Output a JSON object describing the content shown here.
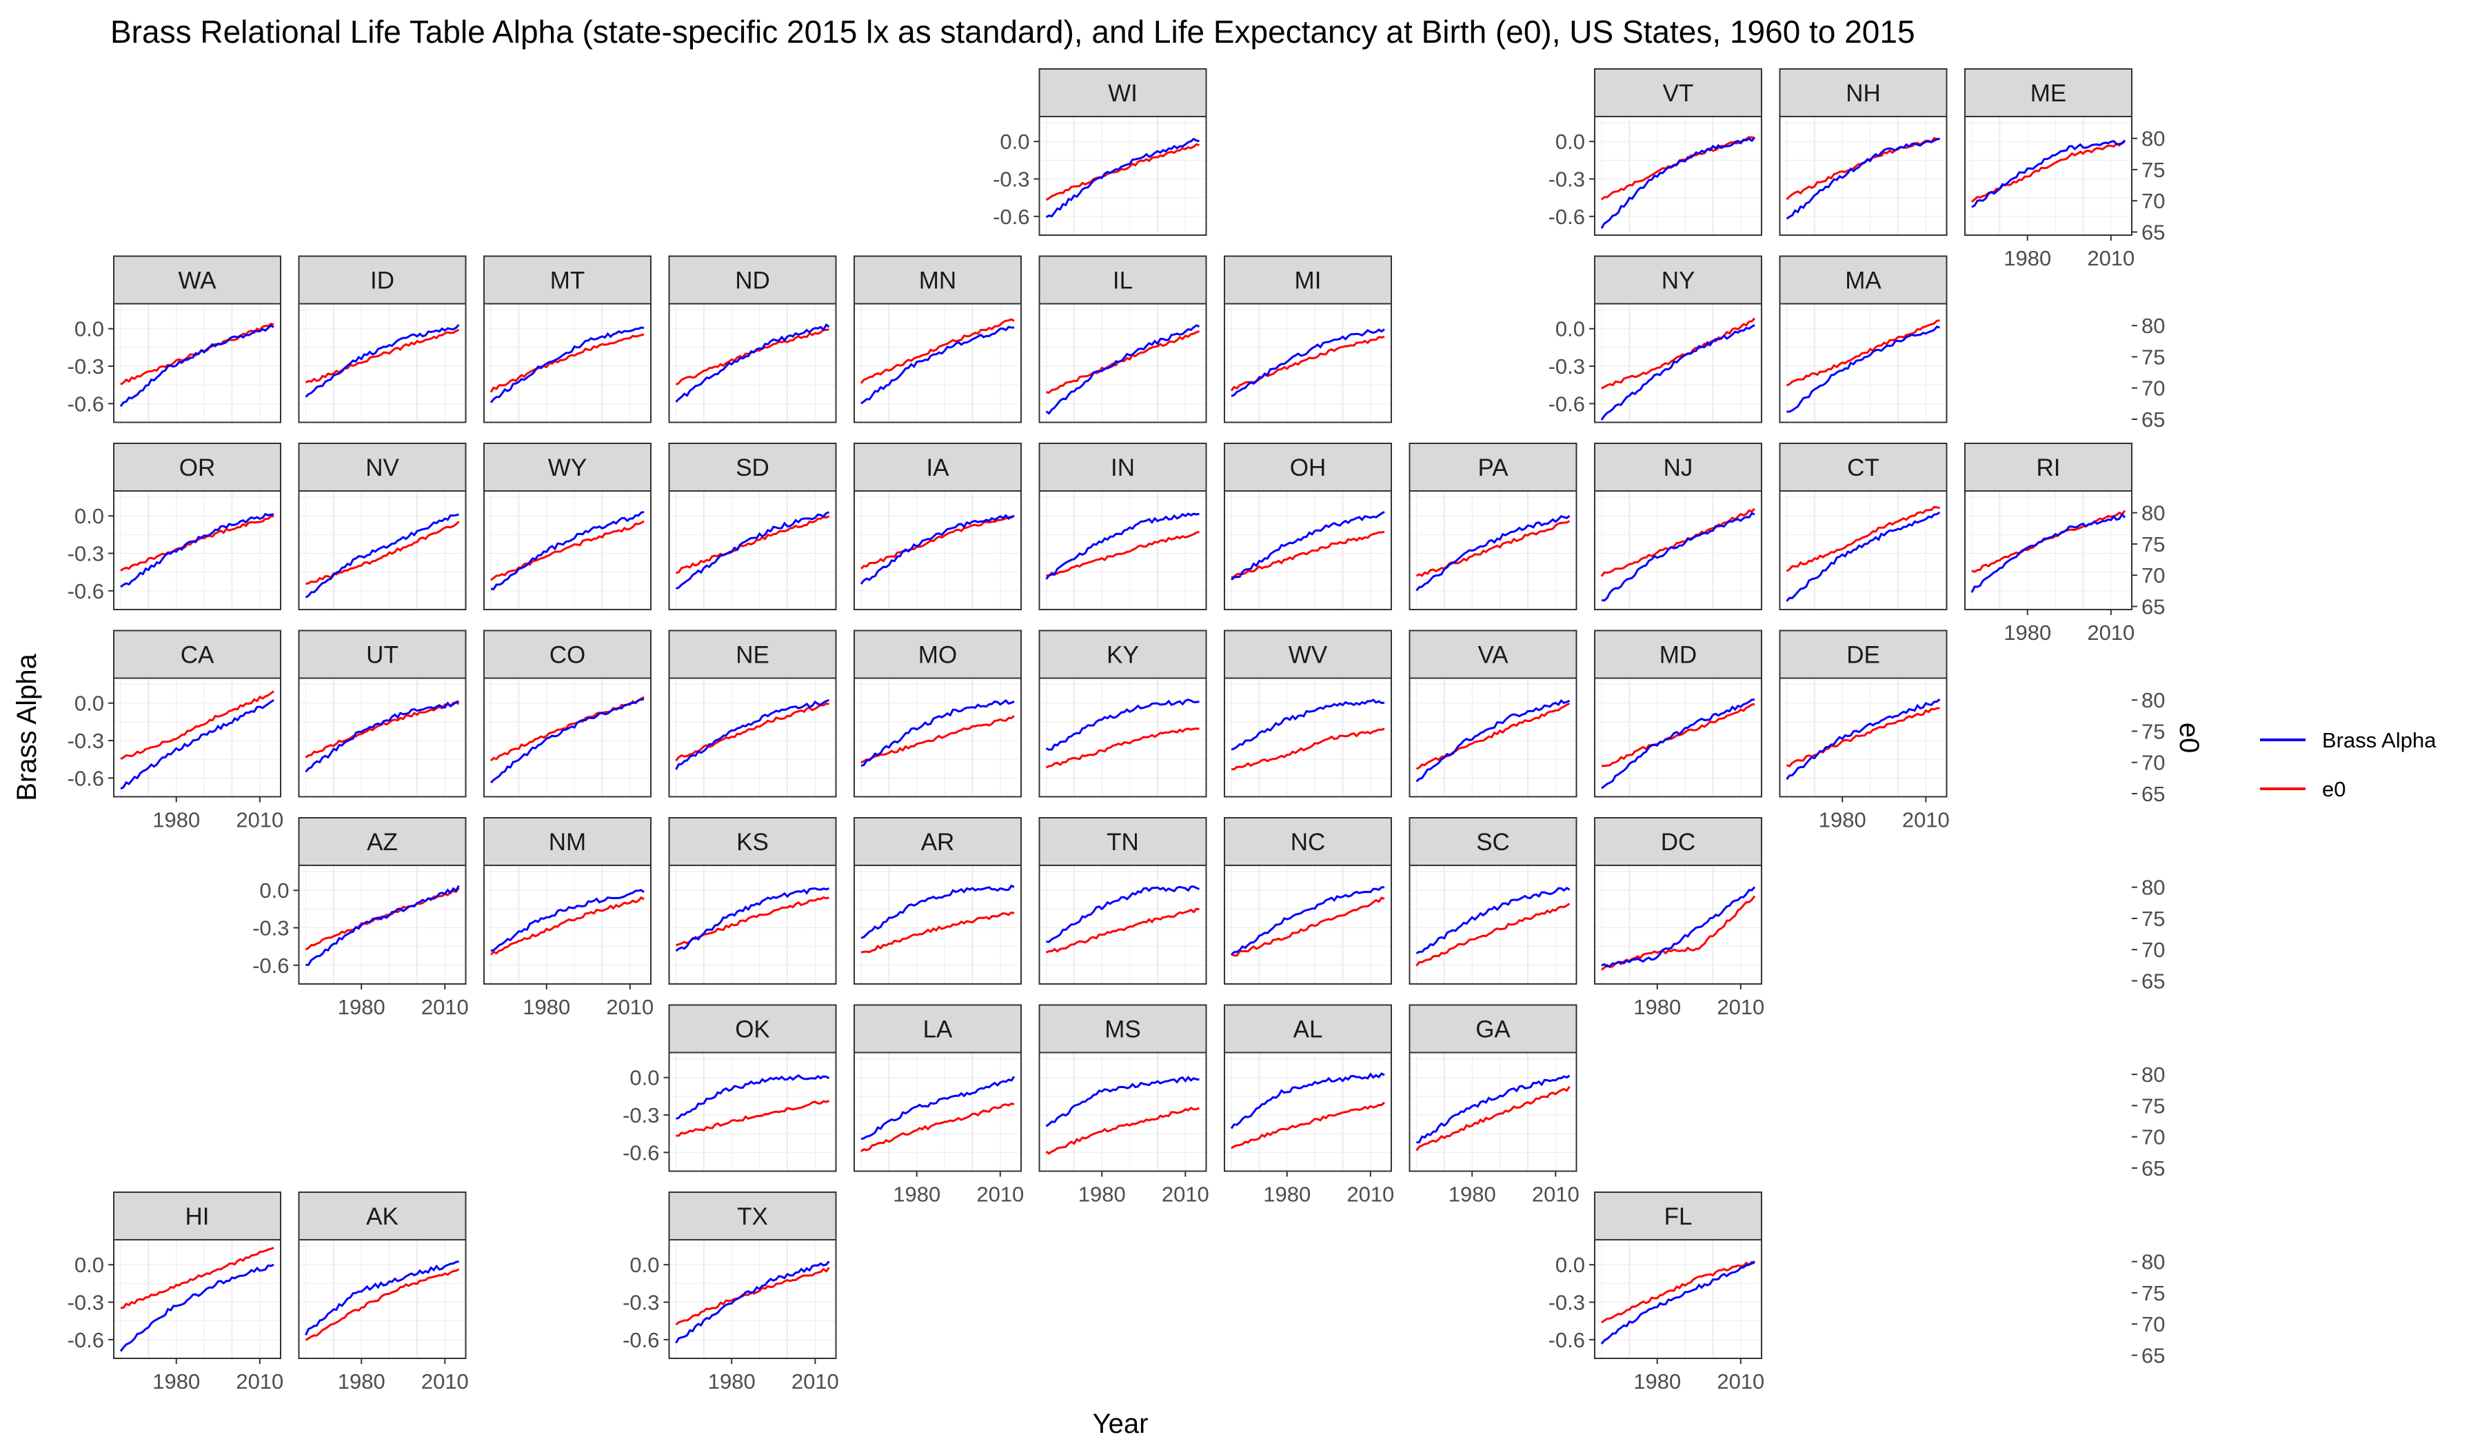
{
  "chart_data": {
    "type": "line",
    "title": "Brass Relational Life Table Alpha (state-specific 2015 lx as standard), and Life Expectancy at Birth (e0), US States, 1960 to 2015",
    "xlabel": "Year",
    "ylabel_left": "Brass Alpha",
    "ylabel_right": "e0",
    "x_range": [
      1960,
      2015
    ],
    "x_ticks": [
      1980,
      2010
    ],
    "x_tick_labels": [
      "1980",
      "2010"
    ],
    "left_axis": {
      "range": [
        -0.75,
        0.2
      ],
      "ticks": [
        0.0,
        -0.3,
        -0.6
      ],
      "tick_labels": [
        "0.0",
        "-0.3",
        "-0.6"
      ]
    },
    "right_axis": {
      "range": [
        64.5,
        83.5
      ],
      "ticks": [
        80,
        75,
        70,
        65
      ],
      "tick_labels": [
        "80",
        "75",
        "70",
        "65"
      ]
    },
    "legend": [
      {
        "name": "Brass Alpha",
        "color": "#0000ff"
      },
      {
        "name": "e0",
        "color": "#ff0000"
      }
    ],
    "colors": {
      "alpha": "#0000ff",
      "e0": "#ff0000",
      "panel_border": "#333333",
      "strip_fill": "#d9d9d9",
      "grid": "#ebebeb"
    },
    "panels": [
      {
        "state": "WI",
        "row": 0,
        "col": 5,
        "alpha": [
          -0.62,
          -0.3,
          -0.12,
          0.02
        ],
        "e0": [
          70.3,
          73.6,
          76.4,
          79.0
        ]
      },
      {
        "state": "VT",
        "row": 0,
        "col": 8,
        "alpha": [
          -0.68,
          -0.3,
          -0.08,
          0.02
        ],
        "e0": [
          70.3,
          74.2,
          77.6,
          80.3
        ]
      },
      {
        "state": "NH",
        "row": 0,
        "col": 9,
        "alpha": [
          -0.62,
          -0.3,
          -0.08,
          0.02
        ],
        "e0": [
          70.4,
          74.2,
          77.6,
          80.0
        ]
      },
      {
        "state": "ME",
        "row": 0,
        "col": 10,
        "alpha": [
          -0.52,
          -0.25,
          -0.05,
          0.0
        ],
        "e0": [
          70.0,
          73.6,
          77.2,
          79.2
        ]
      },
      {
        "state": "WA",
        "row": 1,
        "col": 0,
        "alpha": [
          -0.62,
          -0.3,
          -0.12,
          0.02
        ],
        "e0": [
          70.8,
          73.8,
          77.0,
          80.2
        ]
      },
      {
        "state": "ID",
        "row": 1,
        "col": 1,
        "alpha": [
          -0.55,
          -0.25,
          -0.08,
          0.02
        ],
        "e0": [
          70.7,
          73.8,
          76.6,
          79.2
        ]
      },
      {
        "state": "MT",
        "row": 1,
        "col": 2,
        "alpha": [
          -0.58,
          -0.3,
          -0.1,
          0.02
        ],
        "e0": [
          69.6,
          73.2,
          76.2,
          78.6
        ]
      },
      {
        "state": "ND",
        "row": 1,
        "col": 3,
        "alpha": [
          -0.58,
          -0.3,
          -0.1,
          0.02
        ],
        "e0": [
          70.8,
          74.0,
          77.0,
          79.4
        ]
      },
      {
        "state": "MN",
        "row": 1,
        "col": 4,
        "alpha": [
          -0.6,
          -0.3,
          -0.12,
          0.02
        ],
        "e0": [
          71.0,
          74.5,
          77.8,
          81.0
        ]
      },
      {
        "state": "IL",
        "row": 1,
        "col": 5,
        "alpha": [
          -0.68,
          -0.35,
          -0.15,
          0.02
        ],
        "e0": [
          69.3,
          72.6,
          75.8,
          79.0
        ]
      },
      {
        "state": "MI",
        "row": 1,
        "col": 6,
        "alpha": [
          -0.55,
          -0.28,
          -0.1,
          0.0
        ],
        "e0": [
          69.7,
          73.0,
          75.8,
          78.2
        ]
      },
      {
        "state": "NY",
        "row": 1,
        "col": 8,
        "alpha": [
          -0.72,
          -0.4,
          -0.15,
          0.02
        ],
        "e0": [
          70.0,
          72.8,
          76.4,
          81.0
        ]
      },
      {
        "state": "MA",
        "row": 1,
        "col": 9,
        "alpha": [
          -0.68,
          -0.35,
          -0.15,
          0.02
        ],
        "e0": [
          70.5,
          73.6,
          77.0,
          80.8
        ]
      },
      {
        "state": "OR",
        "row": 2,
        "col": 0,
        "alpha": [
          -0.58,
          -0.3,
          -0.1,
          0.02
        ],
        "e0": [
          70.8,
          73.8,
          76.8,
          79.4
        ]
      },
      {
        "state": "NV",
        "row": 2,
        "col": 1,
        "alpha": [
          -0.65,
          -0.35,
          -0.18,
          0.02
        ],
        "e0": [
          68.6,
          71.2,
          74.4,
          78.4
        ]
      },
      {
        "state": "WY",
        "row": 2,
        "col": 2,
        "alpha": [
          -0.6,
          -0.3,
          -0.12,
          0.02
        ],
        "e0": [
          69.4,
          72.6,
          75.6,
          78.4
        ]
      },
      {
        "state": "SD",
        "row": 2,
        "col": 3,
        "alpha": [
          -0.58,
          -0.3,
          -0.1,
          0.02
        ],
        "e0": [
          70.6,
          73.6,
          76.6,
          79.4
        ]
      },
      {
        "state": "IA",
        "row": 2,
        "col": 4,
        "alpha": [
          -0.55,
          -0.25,
          -0.08,
          0.0
        ],
        "e0": [
          71.2,
          74.2,
          77.2,
          79.6
        ]
      },
      {
        "state": "IN",
        "row": 2,
        "col": 5,
        "alpha": [
          -0.5,
          -0.22,
          -0.05,
          0.02
        ],
        "e0": [
          69.9,
          72.2,
          74.8,
          76.8
        ]
      },
      {
        "state": "OH",
        "row": 2,
        "col": 6,
        "alpha": [
          -0.52,
          -0.25,
          -0.08,
          0.02
        ],
        "e0": [
          69.8,
          72.2,
          74.8,
          76.8
        ]
      },
      {
        "state": "PA",
        "row": 2,
        "col": 7,
        "alpha": [
          -0.6,
          -0.3,
          -0.12,
          0.0
        ],
        "e0": [
          69.8,
          72.6,
          75.6,
          78.6
        ]
      },
      {
        "state": "NJ",
        "row": 2,
        "col": 8,
        "alpha": [
          -0.68,
          -0.35,
          -0.15,
          0.02
        ],
        "e0": [
          70.0,
          73.2,
          76.6,
          80.6
        ]
      },
      {
        "state": "CT",
        "row": 2,
        "col": 9,
        "alpha": [
          -0.68,
          -0.35,
          -0.15,
          0.02
        ],
        "e0": [
          70.9,
          74.0,
          77.8,
          81.0
        ]
      },
      {
        "state": "RI",
        "row": 2,
        "col": 10,
        "alpha": [
          -0.6,
          -0.28,
          -0.1,
          0.0
        ],
        "e0": [
          70.6,
          73.8,
          77.2,
          80.2
        ]
      },
      {
        "state": "CA",
        "row": 3,
        "col": 0,
        "alpha": [
          -0.68,
          -0.4,
          -0.2,
          0.02
        ],
        "e0": [
          70.6,
          73.6,
          77.4,
          81.2
        ]
      },
      {
        "state": "UT",
        "row": 3,
        "col": 1,
        "alpha": [
          -0.55,
          -0.25,
          -0.08,
          0.0
        ],
        "e0": [
          71.0,
          74.4,
          77.2,
          79.6
        ]
      },
      {
        "state": "CO",
        "row": 3,
        "col": 2,
        "alpha": [
          -0.62,
          -0.32,
          -0.12,
          0.02
        ],
        "e0": [
          70.4,
          74.0,
          77.2,
          80.2
        ]
      },
      {
        "state": "NE",
        "row": 3,
        "col": 3,
        "alpha": [
          -0.52,
          -0.25,
          -0.08,
          0.02
        ],
        "e0": [
          70.5,
          73.8,
          76.8,
          79.4
        ]
      },
      {
        "state": "MO",
        "row": 3,
        "col": 4,
        "alpha": [
          -0.5,
          -0.22,
          -0.05,
          0.02
        ],
        "e0": [
          70.0,
          72.6,
          75.0,
          77.2
        ]
      },
      {
        "state": "KY",
        "row": 3,
        "col": 5,
        "alpha": [
          -0.38,
          -0.15,
          -0.02,
          0.02
        ],
        "e0": [
          69.2,
          71.6,
          74.0,
          75.6
        ]
      },
      {
        "state": "WV",
        "row": 3,
        "col": 6,
        "alpha": [
          -0.38,
          -0.15,
          -0.02,
          0.02
        ],
        "e0": [
          69.0,
          70.8,
          73.8,
          75.2
        ]
      },
      {
        "state": "VA",
        "row": 3,
        "col": 7,
        "alpha": [
          -0.62,
          -0.3,
          -0.1,
          0.02
        ],
        "e0": [
          69.0,
          72.6,
          75.8,
          79.2
        ]
      },
      {
        "state": "MD",
        "row": 3,
        "col": 8,
        "alpha": [
          -0.68,
          -0.35,
          -0.15,
          0.02
        ],
        "e0": [
          69.2,
          72.8,
          75.6,
          79.2
        ]
      },
      {
        "state": "DE",
        "row": 3,
        "col": 9,
        "alpha": [
          -0.6,
          -0.3,
          -0.12,
          0.02
        ],
        "e0": [
          69.4,
          72.8,
          75.8,
          78.8
        ]
      },
      {
        "state": "AZ",
        "row": 4,
        "col": 1,
        "alpha": [
          -0.6,
          -0.3,
          -0.15,
          0.02
        ],
        "e0": [
          70.2,
          73.6,
          76.6,
          79.6
        ]
      },
      {
        "state": "NM",
        "row": 4,
        "col": 2,
        "alpha": [
          -0.5,
          -0.22,
          -0.1,
          0.0
        ],
        "e0": [
          69.2,
          72.8,
          75.8,
          78.2
        ]
      },
      {
        "state": "KS",
        "row": 4,
        "col": 3,
        "alpha": [
          -0.5,
          -0.22,
          -0.05,
          0.02
        ],
        "e0": [
          70.6,
          73.6,
          76.2,
          78.6
        ]
      },
      {
        "state": "AR",
        "row": 4,
        "col": 4,
        "alpha": [
          -0.38,
          -0.12,
          0.0,
          0.02
        ],
        "e0": [
          69.4,
          72.2,
          74.2,
          76.0
        ]
      },
      {
        "state": "TN",
        "row": 4,
        "col": 5,
        "alpha": [
          -0.42,
          -0.15,
          0.0,
          0.02
        ],
        "e0": [
          69.4,
          72.0,
          74.4,
          76.4
        ]
      },
      {
        "state": "NC",
        "row": 4,
        "col": 6,
        "alpha": [
          -0.52,
          -0.25,
          -0.08,
          0.02
        ],
        "e0": [
          69.0,
          71.8,
          74.8,
          78.2
        ]
      },
      {
        "state": "SC",
        "row": 4,
        "col": 7,
        "alpha": [
          -0.52,
          -0.25,
          -0.08,
          0.02
        ],
        "e0": [
          67.6,
          71.2,
          74.2,
          77.2
        ]
      },
      {
        "state": "DC",
        "row": 4,
        "col": 8,
        "alpha": [
          -0.6,
          -0.55,
          -0.3,
          0.02
        ],
        "e0": [
          67.0,
          69.4,
          70.2,
          78.6
        ]
      },
      {
        "state": "OK",
        "row": 5,
        "col": 3,
        "alpha": [
          -0.32,
          -0.1,
          0.0,
          0.0
        ],
        "e0": [
          70.2,
          72.2,
          74.0,
          75.8
        ]
      },
      {
        "state": "LA",
        "row": 5,
        "col": 4,
        "alpha": [
          -0.5,
          -0.25,
          -0.15,
          0.0
        ],
        "e0": [
          67.8,
          70.8,
          72.8,
          75.4
        ]
      },
      {
        "state": "MS",
        "row": 5,
        "col": 5,
        "alpha": [
          -0.4,
          -0.12,
          -0.05,
          0.0
        ],
        "e0": [
          67.4,
          70.6,
          72.6,
          74.8
        ]
      },
      {
        "state": "AL",
        "row": 5,
        "col": 6,
        "alpha": [
          -0.4,
          -0.12,
          -0.02,
          0.02
        ],
        "e0": [
          68.4,
          71.2,
          73.2,
          75.4
        ]
      },
      {
        "state": "GA",
        "row": 5,
        "col": 7,
        "alpha": [
          -0.52,
          -0.25,
          -0.1,
          0.02
        ],
        "e0": [
          68.0,
          71.6,
          74.6,
          77.8
        ]
      },
      {
        "state": "HI",
        "row": 6,
        "col": 0,
        "alpha": [
          -0.68,
          -0.35,
          -0.15,
          0.0
        ],
        "e0": [
          72.6,
          75.8,
          78.8,
          82.2
        ]
      },
      {
        "state": "AK",
        "row": 6,
        "col": 1,
        "alpha": [
          -0.55,
          -0.22,
          -0.1,
          0.02
        ],
        "e0": [
          67.2,
          72.2,
          76.0,
          78.6
        ]
      },
      {
        "state": "TX",
        "row": 6,
        "col": 3,
        "alpha": [
          -0.62,
          -0.32,
          -0.12,
          0.02
        ],
        "e0": [
          70.0,
          73.6,
          76.2,
          78.8
        ]
      },
      {
        "state": "FL",
        "row": 6,
        "col": 8,
        "alpha": [
          -0.62,
          -0.35,
          -0.18,
          0.02
        ],
        "e0": [
          70.2,
          74.0,
          77.4,
          80.0
        ]
      }
    ]
  }
}
